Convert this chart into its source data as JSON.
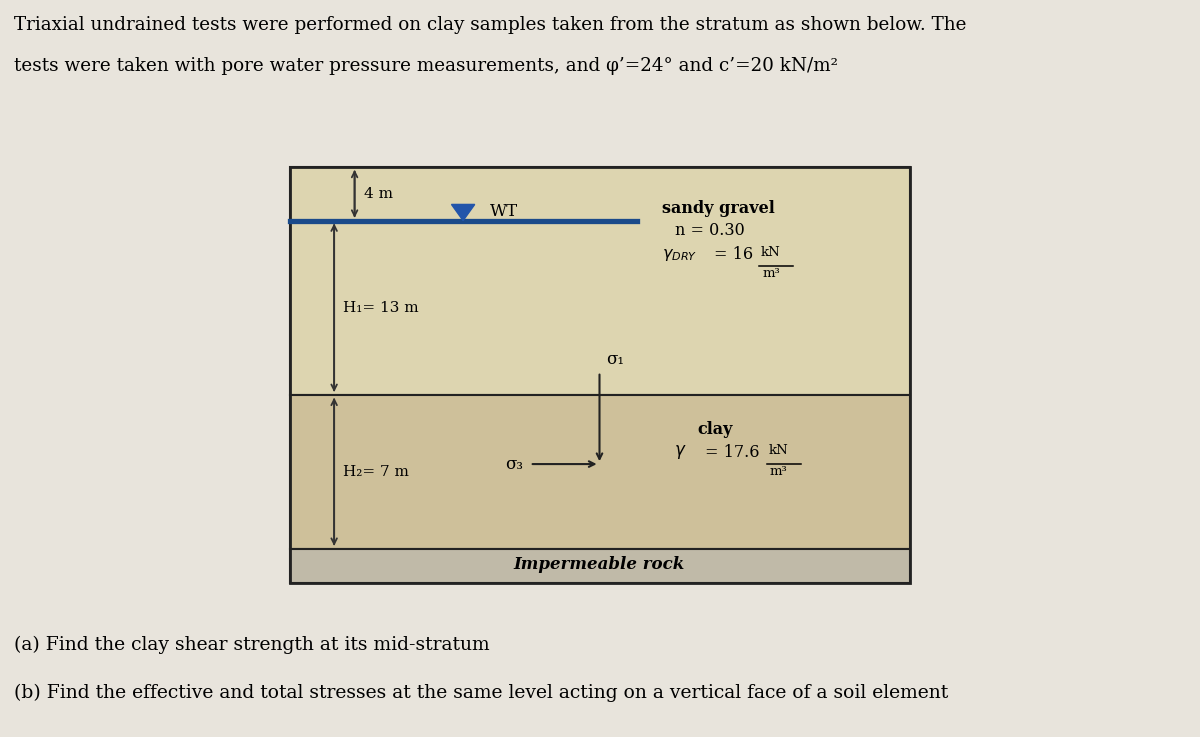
{
  "title_line1": "Triaxial undrained tests were performed on clay samples taken from the stratum as shown below. The",
  "title_line2": "tests were taken with pore water pressure measurements, and φ’=24° and c’=20 kN/m²",
  "question_a": "(a) Find the clay shear strength at its mid-stratum",
  "question_b": "(b) Find the effective and total stresses at the same level acting on a vertical face of a soil element",
  "bg_color": "#e8e4dc",
  "gravel_color": "#ddd5b0",
  "clay_color": "#cec09a",
  "rock_color": "#c0baa8",
  "border_color": "#222222",
  "water_line_color": "#1a4a8a",
  "wt_triangle_color": "#2255aa",
  "dim_line_color": "#333333",
  "stress_arrow_color": "#222222",
  "sandy_gravel_label": "sandy gravel",
  "n_label": "n = 0.30",
  "gamma_dry_val": "= 16",
  "clay_label": "clay",
  "gamma_clay_val": "= 17.6",
  "rock_label": "Impermeable rock",
  "h1_label": "H₁= 13 m",
  "h2_label": "H₂= 7 m",
  "dim4m_label": "4 m",
  "wt_label": "WT",
  "sigma1_label": "σ₁",
  "sigma3_label": "σ₃",
  "kN_label": "kN",
  "m3_label": "m³"
}
